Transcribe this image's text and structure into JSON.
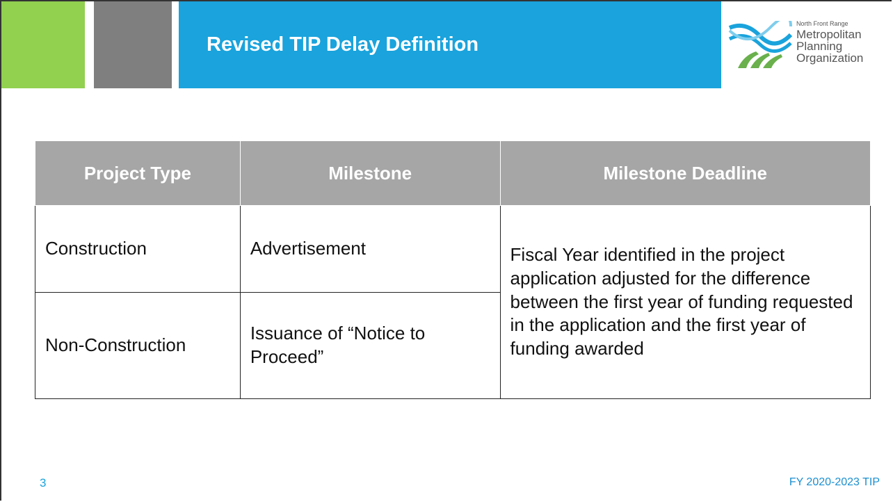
{
  "header": {
    "title": "Revised TIP Delay Definition",
    "logo": {
      "tagline": "North Front Range",
      "lines": [
        "Metropolitan",
        "Planning",
        "Organization"
      ]
    }
  },
  "table": {
    "columns": [
      "Project Type",
      "Milestone",
      "Milestone Deadline"
    ],
    "rows": [
      [
        "Construction",
        "Advertisement"
      ],
      [
        "Non-Construction",
        "Issuance of “Notice to Proceed”"
      ]
    ],
    "deadline": "Fiscal Year identified in the project application adjusted for the difference between the first year of funding requested in the application and the first year of funding awarded"
  },
  "footer": {
    "page": "3",
    "label": "FY 2020-2023 TIP"
  }
}
